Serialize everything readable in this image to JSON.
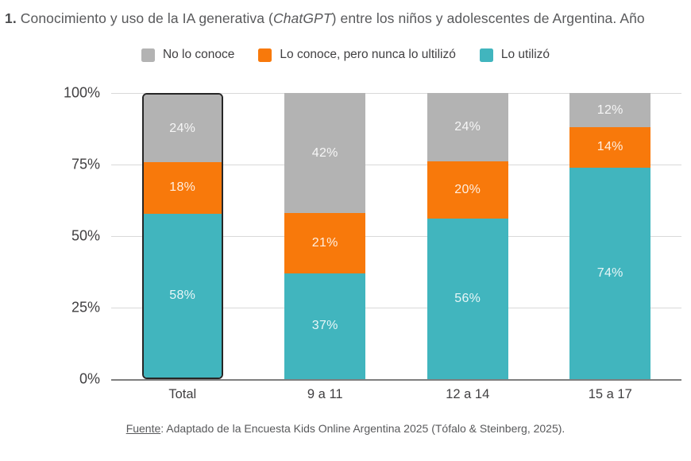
{
  "title": {
    "number": "1.",
    "before_italic": " Conocimiento y uso de la IA generativa (",
    "italic": "ChatGPT",
    "after_italic": ") entre los niños y adolescentes de Argentina. Año"
  },
  "footer": {
    "label": "Fuente",
    "text": ": Adaptado de la Encuesta Kids Online Argentina 2025 (Tófalo & Steinberg, 2025)."
  },
  "chart_data": {
    "type": "bar",
    "stacked": true,
    "title": "Conocimiento y uso de la IA generativa (ChatGPT) entre los niños y adolescentes de Argentina",
    "categories": [
      "Total",
      "9 a 11",
      "12 a 14",
      "15 a 17"
    ],
    "series": [
      {
        "name": "No lo conoce",
        "color": "#b3b3b3",
        "values": [
          24,
          42,
          24,
          12
        ]
      },
      {
        "name": "Lo conoce, pero nunca lo ultilizó",
        "color": "#f8790b",
        "values": [
          18,
          21,
          20,
          14
        ]
      },
      {
        "name": "Lo utilizó",
        "color": "#41b5be",
        "values": [
          58,
          37,
          56,
          74
        ]
      }
    ],
    "y_ticks": [
      "100%",
      "75%",
      "50%",
      "25%",
      "0%"
    ],
    "ylim": [
      0,
      100
    ],
    "value_suffix": "%",
    "legend_position": "top",
    "grid": true,
    "highlighted_category": "Total",
    "colors": {
      "label_text": "rgba(255,255,255,0.88)",
      "gridline": "#d9d9d9",
      "axis_line": "#7f7f7f",
      "highlight_border": "#262626"
    }
  }
}
